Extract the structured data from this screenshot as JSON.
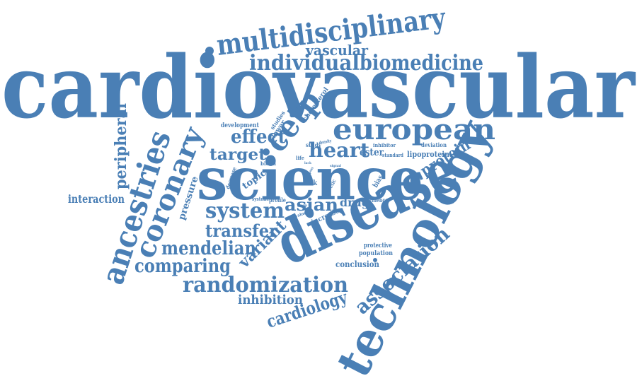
{
  "cloud": {
    "color": "#4a7fb5",
    "words": [
      "cardiovascular",
      "science",
      "disease",
      "technology",
      "multidisciplinary",
      "european",
      "coronary",
      "ancestries",
      "randomization",
      "individual",
      "biomedicine",
      "cetp",
      "system",
      "mendelian",
      "association",
      "comparing",
      "transfer",
      "asian",
      "vascular",
      "heart",
      "effect",
      "peripheral",
      "target",
      "protein",
      "variant",
      "cardiology",
      "inhibition",
      "interaction",
      "drug",
      "pressure",
      "topic",
      "conclusion",
      "ester",
      "lipoprotein",
      "protective",
      "population",
      "increase",
      "development",
      "studies",
      "lower",
      "cholesterol",
      "decrease",
      "life",
      "lack",
      "study",
      "density",
      "inhibitor",
      "deviation",
      "standard",
      "blood",
      "risk",
      "genetic",
      "bias",
      "signal",
      "systolic",
      "profile",
      "evidence",
      "value",
      "group",
      "pass"
    ]
  }
}
